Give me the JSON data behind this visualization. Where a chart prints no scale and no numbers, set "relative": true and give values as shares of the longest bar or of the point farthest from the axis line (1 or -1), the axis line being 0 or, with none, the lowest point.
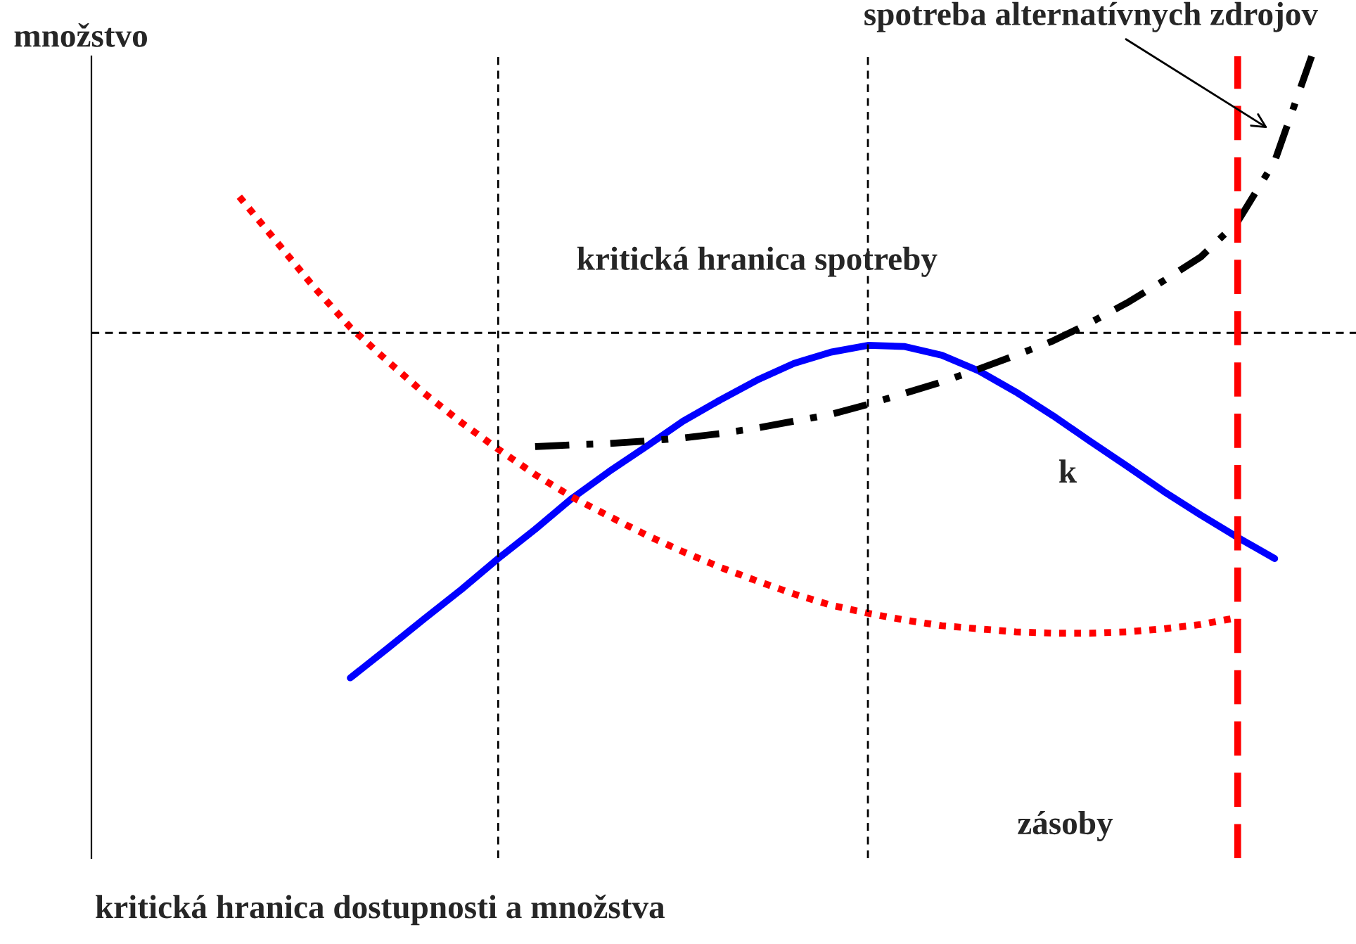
{
  "chart_data": {
    "type": "line",
    "relative": true,
    "ylabel": "množstvo",
    "xlabel": "zásoby",
    "legend": false,
    "categories": [
      null,
      null,
      null,
      null,
      null,
      null,
      null,
      null,
      null,
      null,
      null,
      null,
      null,
      null,
      null,
      null,
      null,
      null,
      null,
      null,
      null,
      null,
      null,
      null,
      null,
      null,
      null,
      null,
      null,
      null,
      null
    ],
    "series": [
      {
        "color": "#0000ff",
        "line_style": "solid",
        "values": [
          null,
          null,
          null,
          null,
          0,
          0.047,
          0.095,
          0.142,
          0.192,
          0.239,
          0.289,
          0.332,
          0.372,
          0.413,
          0.447,
          0.479,
          0.506,
          0.524,
          0.535,
          0.533,
          0.519,
          0.494,
          0.46,
          0.422,
          0.381,
          0.341,
          0.3,
          0.262,
          0.226,
          0.192,
          null
        ]
      },
      {
        "color": "#ff0000",
        "line_style": "dotted",
        "values": [
          null,
          0.774,
          0.702,
          0.63,
          0.564,
          0.51,
          0.458,
          0.411,
          0.368,
          0.327,
          0.291,
          0.26,
          0.23,
          0.203,
          0.178,
          0.156,
          0.135,
          0.117,
          0.104,
          0.093,
          0.084,
          0.079,
          0.074,
          0.072,
          0.072,
          0.074,
          0.079,
          0.086,
          0.097,
          null,
          null
        ]
      },
      {
        "name": "spotreba alternatívnych zdrojov",
        "color": "#000000",
        "line_style": "dashdot",
        "values": [
          null,
          null,
          null,
          null,
          null,
          null,
          null,
          null,
          null,
          0.372,
          0.375,
          0.377,
          0.381,
          0.386,
          0.393,
          0.402,
          0.413,
          0.424,
          0.44,
          0.458,
          0.476,
          0.497,
          0.519,
          0.542,
          0.571,
          0.603,
          0.639,
          0.677,
          0.734,
          0.831,
          1
        ]
      }
    ],
    "ref_lines": [
      {
        "axis": "y",
        "value": 0.555,
        "label": "kritická hranica spotreby",
        "color": "#000000",
        "line_style": "dashed"
      }
    ],
    "annotations": [
      "k",
      "kritická hranica dostupnosti a množstva"
    ]
  }
}
